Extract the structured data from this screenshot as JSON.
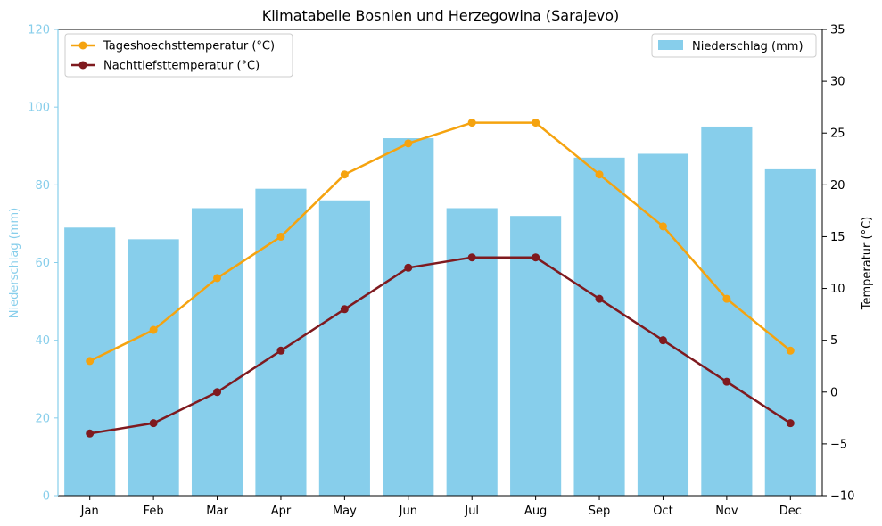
{
  "chart_data": {
    "type": "bar+line",
    "title": "Klimatabelle Bosnien und Herzegowina (Sarajevo)",
    "categories": [
      "Jan",
      "Feb",
      "Mar",
      "Apr",
      "May",
      "Jun",
      "Jul",
      "Aug",
      "Sep",
      "Oct",
      "Nov",
      "Dec"
    ],
    "bar_series": {
      "name": "Niederschlag (mm)",
      "values": [
        69,
        66,
        74,
        79,
        76,
        92,
        74,
        72,
        87,
        88,
        95,
        84
      ],
      "color": "#87ceeb"
    },
    "line_series": [
      {
        "name": "Tageshoechsttemperatur (°C)",
        "values": [
          3,
          6,
          11,
          15,
          21,
          24,
          26,
          26,
          21,
          16,
          9,
          4
        ],
        "color": "#f5a30f"
      },
      {
        "name": "Nachttiefsttemperatur (°C)",
        "values": [
          -4,
          -3,
          0,
          4,
          8,
          12,
          13,
          13,
          9,
          5,
          1,
          -3
        ],
        "color": "#7f1a1f"
      }
    ],
    "y_left": {
      "label": "Niederschlag (mm)",
      "lim": [
        0,
        120
      ],
      "ticks": [
        0,
        20,
        40,
        60,
        80,
        100,
        120
      ],
      "color": "#87ceeb"
    },
    "y_right": {
      "label": "Temperatur (°C)",
      "lim": [
        -10,
        35
      ],
      "ticks": [
        -10,
        -5,
        0,
        5,
        10,
        15,
        20,
        25,
        30,
        35
      ]
    },
    "legend_lines_position": "top-left",
    "legend_bars_position": "top-right",
    "grid": false
  }
}
